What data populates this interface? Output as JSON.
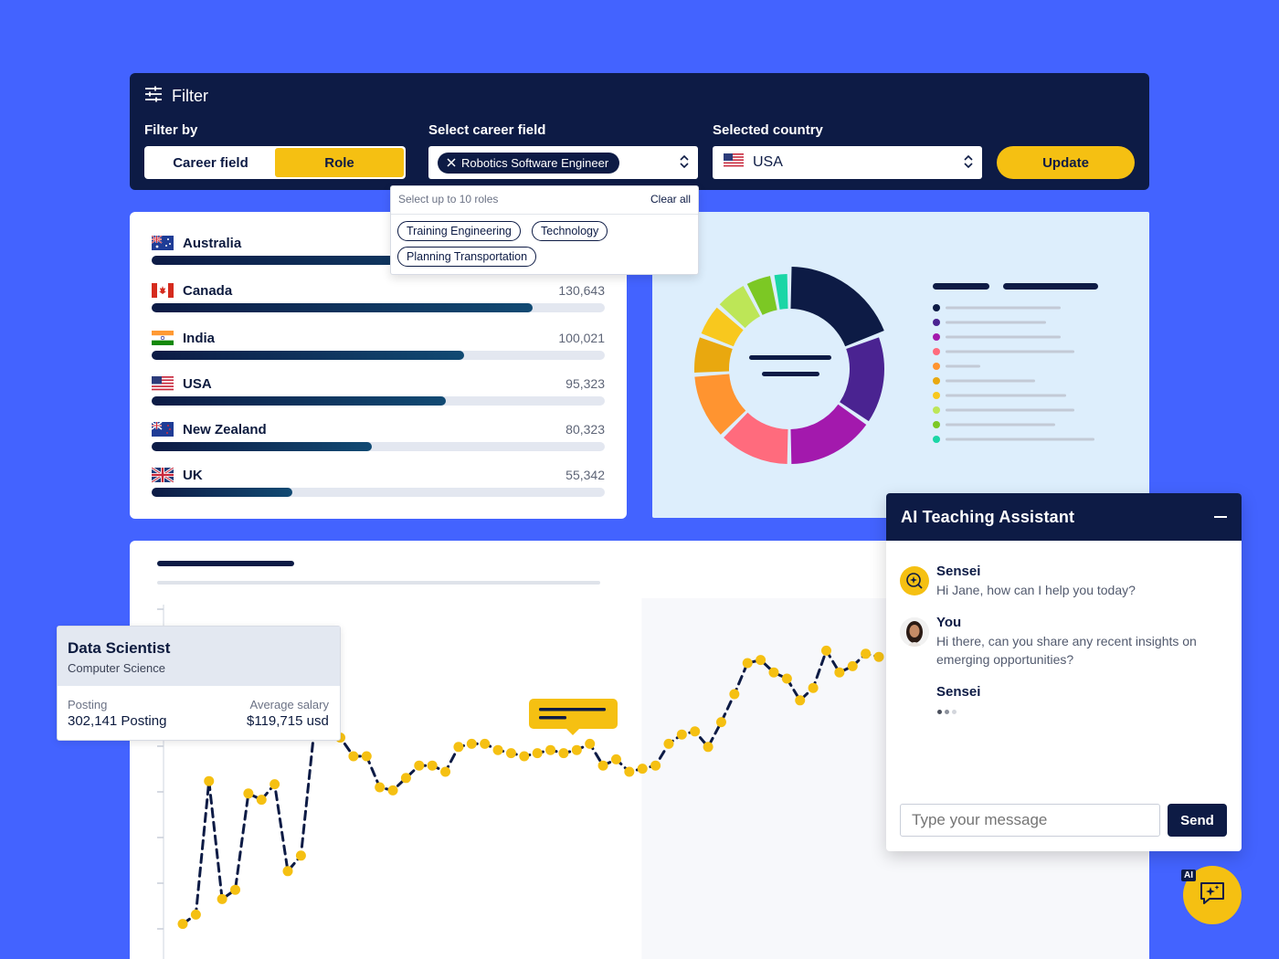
{
  "filter": {
    "title": "Filter",
    "filter_by_label": "Filter by",
    "toggle": {
      "career_field": "Career field",
      "role": "Role",
      "active": "Role"
    },
    "career_field_label": "Select career field",
    "selected_career": "Robotics Software Engineer",
    "country_label": "Selected country",
    "selected_country": "USA",
    "update_label": "Update"
  },
  "roles_dropdown": {
    "hint": "Select up to 10 roles",
    "clear_all": "Clear all",
    "roles": [
      "Training Engineering",
      "Technology",
      "Planning Transportation"
    ]
  },
  "countries": [
    {
      "name": "Australia",
      "value": "",
      "flag": "au-flag",
      "fraction": 0.96
    },
    {
      "name": "Canada",
      "value": "130,643",
      "flag": "ca-flag",
      "fraction": 0.84
    },
    {
      "name": "India",
      "value": "100,021",
      "flag": "in-flag",
      "fraction": 0.69
    },
    {
      "name": "USA",
      "value": "95,323",
      "flag": "us-flag",
      "fraction": 0.65
    },
    {
      "name": "New Zealand",
      "value": "80,323",
      "flag": "nz-flag",
      "fraction": 0.485
    },
    {
      "name": "UK",
      "value": "55,342",
      "flag": "uk-flag",
      "fraction": 0.31
    }
  ],
  "donut": {
    "segments": [
      {
        "value": 20,
        "color": "#0d1b45"
      },
      {
        "value": 16,
        "color": "#4a2391"
      },
      {
        "value": 16,
        "color": "#a319ad"
      },
      {
        "value": 13,
        "color": "#ff6b7d"
      },
      {
        "value": 12,
        "color": "#ff9430"
      },
      {
        "value": 7,
        "color": "#e9a80f"
      },
      {
        "value": 6,
        "color": "#f8c81e"
      },
      {
        "value": 6,
        "color": "#bde657"
      },
      {
        "value": 5,
        "color": "#7cc824"
      },
      {
        "value": 3,
        "color": "#1ad6a6"
      }
    ],
    "legend_colors": [
      "#0d1b45",
      "#4a2391",
      "#a319ad",
      "#ff6b7d",
      "#ff9430",
      "#e9a80f",
      "#f8c81e",
      "#bde657",
      "#7cc824",
      "#1ad6a6"
    ]
  },
  "chart_data": {
    "type": "line",
    "title": "",
    "xlabel": "",
    "ylabel": "",
    "series": [
      {
        "color": "#0d1b45",
        "marker_color": "#f5c012",
        "values": [
          6,
          9,
          52,
          14,
          17,
          48,
          46,
          51,
          23,
          28,
          68,
          67,
          66,
          60,
          60,
          50,
          49,
          53,
          57,
          57,
          55,
          63,
          64,
          64,
          62,
          61,
          60,
          61,
          62,
          61,
          62,
          64,
          57,
          59,
          55,
          56,
          57,
          64,
          67,
          68,
          63,
          71,
          80,
          90,
          91,
          87,
          85,
          78,
          82,
          94,
          87,
          89,
          93,
          92
        ]
      }
    ],
    "highlight_region": {
      "start_index": 36,
      "end_index": 53
    },
    "grid": false
  },
  "data_scientist": {
    "title": "Data Scientist",
    "subtitle": "Computer Science",
    "posting_label": "Posting",
    "posting_value": "302,141 Posting",
    "salary_label": "Average salary",
    "salary_value": "$119,715 usd"
  },
  "assistant": {
    "title": "AI Teaching Assistant",
    "messages": [
      {
        "sender": "Sensei",
        "text": "Hi Jane, how can I help you today?"
      },
      {
        "sender": "You",
        "text": "Hi there, can you share any recent insights on emerging opportunities?"
      },
      {
        "sender": "Sensei",
        "text": ""
      }
    ],
    "input_placeholder": "Type your message",
    "send_label": "Send"
  },
  "fab": {
    "badge": "AI",
    "icon": "ai-chat-icon"
  },
  "colors": {
    "background": "#4363ff",
    "navy": "#0d1b45",
    "accent": "#f5c012"
  }
}
